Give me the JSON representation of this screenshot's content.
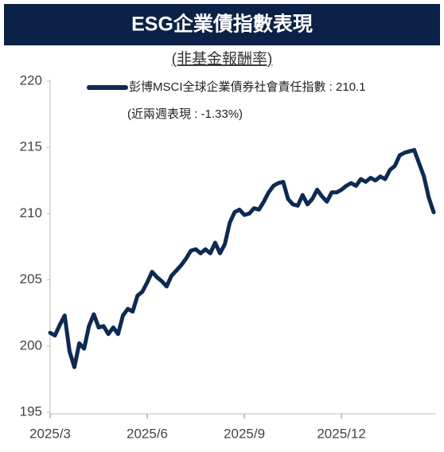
{
  "chart_data": {
    "type": "line",
    "title": "ESG企業債指數表現",
    "subtitle": "(非基金報酬率)",
    "legend_note": "(近兩週表現 : -1.33%)",
    "categories": [
      "2025/3",
      null,
      null,
      null,
      null,
      null,
      null,
      null,
      null,
      null,
      null,
      null,
      null,
      null,
      null,
      null,
      null,
      null,
      null,
      null,
      "2025/6",
      null,
      null,
      null,
      null,
      null,
      null,
      null,
      null,
      null,
      null,
      null,
      null,
      null,
      null,
      null,
      null,
      null,
      null,
      null,
      "2025/9",
      null,
      null,
      null,
      null,
      null,
      null,
      null,
      null,
      null,
      null,
      null,
      null,
      null,
      null,
      null,
      null,
      null,
      null,
      null,
      "2025/12",
      null,
      null,
      null,
      null,
      null,
      null,
      null,
      null,
      null,
      null,
      null,
      null,
      null,
      null,
      null,
      null,
      null,
      null,
      null
    ],
    "series": [
      {
        "name": "彭博MSCI全球企業債券社會責任指數 : 210.1",
        "color": "#0d2a52",
        "values": [
          201.0,
          200.8,
          201.6,
          202.3,
          199.6,
          198.4,
          200.2,
          199.8,
          201.5,
          202.4,
          201.4,
          201.5,
          200.9,
          201.4,
          200.9,
          202.3,
          202.8,
          202.6,
          203.8,
          204.1,
          204.8,
          205.6,
          205.2,
          204.9,
          204.5,
          205.3,
          205.7,
          206.1,
          206.6,
          207.2,
          207.3,
          207.0,
          207.3,
          207.0,
          207.8,
          207.0,
          207.7,
          209.3,
          210.1,
          210.3,
          209.9,
          210.0,
          210.4,
          210.3,
          210.9,
          211.6,
          212.1,
          212.3,
          212.4,
          211.1,
          210.7,
          210.6,
          211.4,
          210.7,
          211.1,
          211.8,
          211.3,
          210.9,
          211.6,
          211.6,
          211.8,
          212.1,
          212.3,
          212.1,
          212.6,
          212.4,
          212.7,
          212.5,
          212.8,
          212.6,
          213.3,
          213.6,
          214.4,
          214.6,
          214.7,
          214.8,
          213.8,
          212.8,
          211.2,
          210.1
        ]
      }
    ],
    "ylim": [
      195,
      220
    ],
    "yticks": [
      195,
      200,
      205,
      210,
      215,
      220
    ]
  }
}
